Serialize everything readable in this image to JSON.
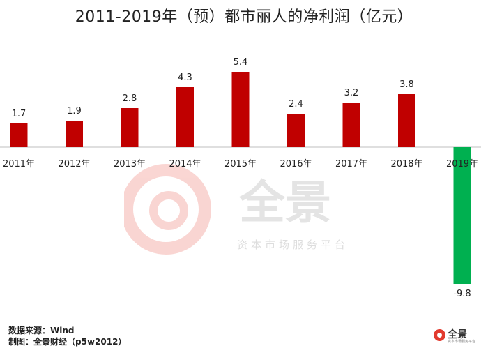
{
  "chart_data": {
    "type": "bar",
    "title": "2011-2019年（预）都市丽人的净利润（亿元）",
    "categories": [
      "2011年",
      "2012年",
      "2013年",
      "2014年",
      "2015年",
      "2016年",
      "2017年",
      "2018年",
      "2019年"
    ],
    "values": [
      1.7,
      1.9,
      2.8,
      4.3,
      5.4,
      2.4,
      3.2,
      3.8,
      -9.8
    ],
    "data_labels": [
      "1.7",
      "1.9",
      "2.8",
      "4.3",
      "5.4",
      "2.4",
      "3.2",
      "3.8",
      "-9.8"
    ],
    "colors": {
      "positive": "#c00000",
      "negative": "#00b050"
    },
    "xlabel": "",
    "ylabel": "",
    "grid": false,
    "legend": "none"
  },
  "footer": {
    "source": "数据来源：Wind",
    "maker": "制图：全景财经（p5w2012）"
  },
  "watermark": {
    "brand": "全景",
    "subtitle": "资本市场服务平台"
  },
  "corner_logo": {
    "brand": "全景",
    "icon": "quanjing-logo-icon"
  }
}
